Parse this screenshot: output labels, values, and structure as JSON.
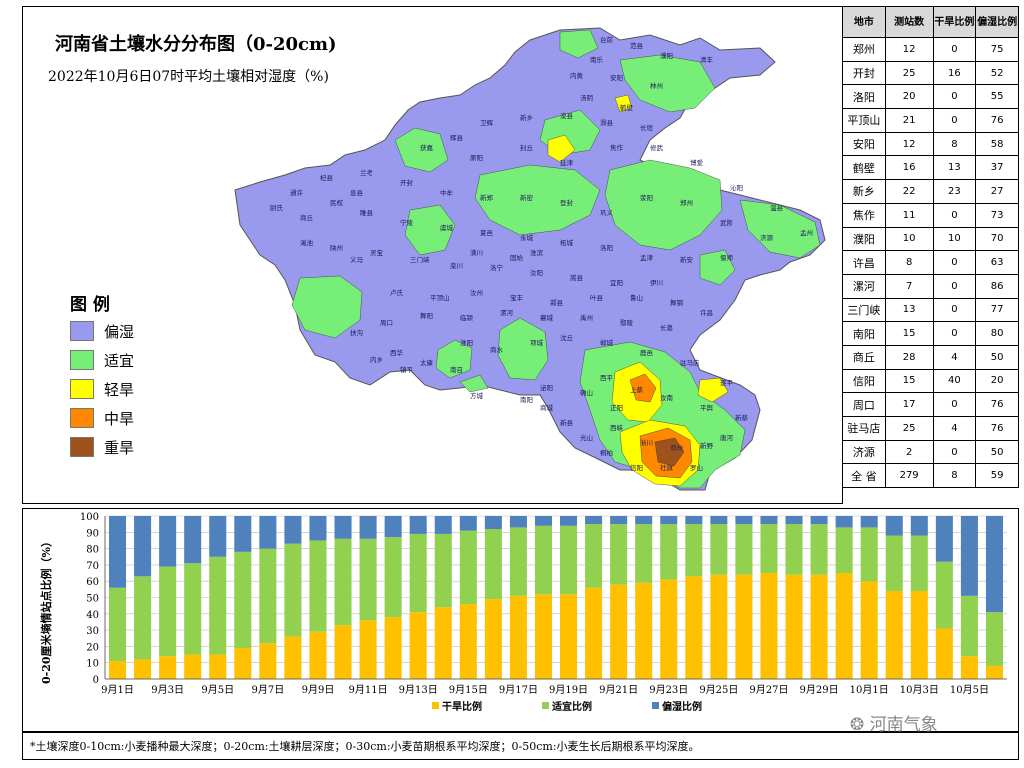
{
  "map": {
    "title": "河南省土壤水分分布图（0-20cm)",
    "subtitle": "2022年10月6日07时平均土壤相对湿度（%)",
    "legend_title": "图 例",
    "legend": [
      {
        "label": "偏湿",
        "color": "#9999ee"
      },
      {
        "label": "适宜",
        "color": "#77ee77"
      },
      {
        "label": "轻旱",
        "color": "#ffff00"
      },
      {
        "label": "中旱",
        "color": "#ff8800"
      },
      {
        "label": "重旱",
        "color": "#a0521d"
      }
    ],
    "place_labels": [
      "台前",
      "范县",
      "濮阳",
      "清丰",
      "南乐",
      "内黄",
      "安阳",
      "林州",
      "汤阴",
      "鹤壁",
      "浚县",
      "滑县",
      "长垣",
      "新乡",
      "卫辉",
      "辉县",
      "获嘉",
      "原阳",
      "封丘",
      "延津",
      "焦作",
      "修武",
      "博爱",
      "沁阳",
      "温县",
      "孟州",
      "济源",
      "武陟",
      "郑州",
      "荥阳",
      "巩义",
      "登封",
      "新密",
      "新郑",
      "中牟",
      "开封",
      "兰考",
      "杞县",
      "通许",
      "尉氏",
      "商丘",
      "民权",
      "睢县",
      "宁陵",
      "虞城",
      "夏邑",
      "永城",
      "柘城",
      "洛阳",
      "孟津",
      "新安",
      "偃师",
      "伊川",
      "宜阳",
      "嵩县",
      "汝阳",
      "洛宁",
      "栾川",
      "三门峡",
      "灵宝",
      "陕州",
      "渑池",
      "义马",
      "卢氏",
      "平顶山",
      "汝州",
      "宝丰",
      "郏县",
      "叶县",
      "鲁山",
      "舞钢",
      "许昌",
      "长葛",
      "鄢陵",
      "禹州",
      "襄城",
      "漯河",
      "临颍",
      "舞阳",
      "周口",
      "扶沟",
      "西华",
      "太康",
      "淮阳",
      "商水",
      "项城",
      "沈丘",
      "郸城",
      "鹿邑",
      "驻马店",
      "遂平",
      "西平",
      "上蔡",
      "汝南",
      "平舆",
      "新蔡",
      "正阳",
      "确山",
      "泌阳",
      "南阳",
      "方城",
      "南召",
      "镇平",
      "内乡",
      "西峡",
      "淅川",
      "邓州",
      "新野",
      "唐河",
      "桐柏",
      "社旗",
      "信阳",
      "罗山",
      "光山",
      "新县",
      "商城",
      "固始",
      "潢川",
      "淮滨",
      "息县"
    ]
  },
  "table": {
    "headers": [
      "地市",
      "测站数",
      "干旱比例",
      "偏湿比例"
    ],
    "rows": [
      [
        "郑州",
        "12",
        "0",
        "75"
      ],
      [
        "开封",
        "25",
        "16",
        "52"
      ],
      [
        "洛阳",
        "20",
        "0",
        "55"
      ],
      [
        "平顶山",
        "21",
        "0",
        "76"
      ],
      [
        "安阳",
        "12",
        "8",
        "58"
      ],
      [
        "鹤壁",
        "16",
        "13",
        "37"
      ],
      [
        "新乡",
        "22",
        "23",
        "27"
      ],
      [
        "焦作",
        "11",
        "0",
        "73"
      ],
      [
        "濮阳",
        "10",
        "10",
        "70"
      ],
      [
        "许昌",
        "8",
        "0",
        "63"
      ],
      [
        "漯河",
        "7",
        "0",
        "86"
      ],
      [
        "三门峡",
        "13",
        "0",
        "77"
      ],
      [
        "南阳",
        "15",
        "0",
        "80"
      ],
      [
        "商丘",
        "28",
        "4",
        "50"
      ],
      [
        "信阳",
        "15",
        "40",
        "20"
      ],
      [
        "周口",
        "17",
        "0",
        "76"
      ],
      [
        "驻马店",
        "25",
        "4",
        "76"
      ],
      [
        "济源",
        "2",
        "0",
        "50"
      ],
      [
        "全 省",
        "279",
        "8",
        "59"
      ]
    ]
  },
  "chart_data": {
    "type": "bar",
    "stacked": true,
    "ylabel": "0-20厘米墒情站点比例（%）",
    "ylim": [
      0,
      100
    ],
    "yticks": [
      0,
      10,
      20,
      30,
      40,
      50,
      60,
      70,
      80,
      90,
      100
    ],
    "categories": [
      "9月1日",
      "9月2日",
      "9月3日",
      "9月4日",
      "9月5日",
      "9月6日",
      "9月7日",
      "9月8日",
      "9月9日",
      "9月10日",
      "9月11日",
      "9月12日",
      "9月13日",
      "9月14日",
      "9月15日",
      "9月16日",
      "9月17日",
      "9月18日",
      "9月19日",
      "9月20日",
      "9月21日",
      "9月22日",
      "9月23日",
      "9月24日",
      "9月25日",
      "9月26日",
      "9月27日",
      "9月28日",
      "9月29日",
      "9月30日",
      "10月1日",
      "10月2日",
      "10月3日",
      "10月4日",
      "10月5日",
      "10月6日"
    ],
    "x_tick_labels": [
      "9月1日",
      "9月3日",
      "9月5日",
      "9月7日",
      "9月9日",
      "9月11日",
      "9月13日",
      "9月15日",
      "9月17日",
      "9月19日",
      "9月21日",
      "9月23日",
      "9月25日",
      "9月27日",
      "9月29日",
      "10月1日",
      "10月3日",
      "10月5日"
    ],
    "series": [
      {
        "name": "干旱比例",
        "color": "#ffc000",
        "values": [
          11,
          12,
          14,
          15,
          15,
          19,
          22,
          26,
          29,
          33,
          36,
          38,
          41,
          44,
          46,
          49,
          51,
          52,
          52,
          56,
          58,
          59,
          61,
          63,
          64,
          64,
          65,
          64,
          64,
          65,
          60,
          54,
          54,
          31,
          14,
          8
        ]
      },
      {
        "name": "适宜比例",
        "color": "#92d050",
        "values": [
          45,
          51,
          55,
          56,
          60,
          59,
          58,
          57,
          56,
          53,
          50,
          49,
          48,
          45,
          45,
          43,
          42,
          42,
          42,
          39,
          37,
          36,
          34,
          32,
          31,
          31,
          30,
          31,
          31,
          28,
          33,
          34,
          34,
          41,
          37,
          33
        ]
      },
      {
        "name": "偏湿比例",
        "color": "#4f81bd",
        "values": [
          44,
          37,
          31,
          29,
          25,
          22,
          20,
          17,
          15,
          14,
          14,
          13,
          11,
          11,
          9,
          8,
          7,
          6,
          6,
          5,
          5,
          5,
          5,
          5,
          5,
          5,
          5,
          5,
          5,
          7,
          7,
          12,
          12,
          28,
          49,
          59
        ]
      }
    ]
  },
  "footnote": "*土壤深度0-10cm:小麦播种最大深度；0-20cm:土壤耕层深度；0-30cm:小麦苗期根系平均深度；0-50cm:小麦生长后期根系平均深度。",
  "watermark": "河南气象"
}
